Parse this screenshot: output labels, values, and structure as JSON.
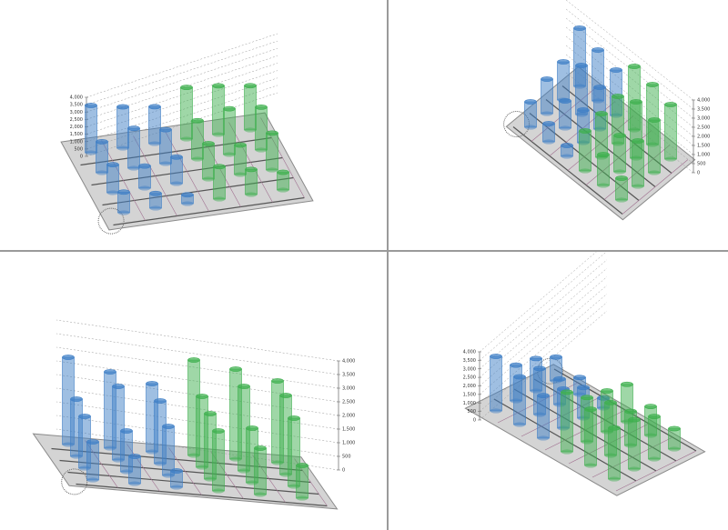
{
  "chart_data": [
    {
      "type": "cylinder3d",
      "series": [
        {
          "color": "#3f7fc6",
          "values": [
            3200,
            2800,
            2500,
            2100,
            2700,
            2300,
            1900,
            1500,
            1800,
            1400,
            1000,
            600
          ]
        },
        {
          "color": "#3fb04f",
          "values": [
            3500,
            3300,
            3000,
            2600,
            3100,
            2900,
            2400,
            2000,
            2500,
            2200,
            1700,
            1200
          ]
        }
      ],
      "ylim": [
        0,
        4000
      ],
      "yticks": [
        0,
        500,
        {
          "value": 1000,
          "label": "1,000"
        },
        {
          "value": 1500,
          "label": "1,500"
        },
        {
          "value": 2000,
          "label": "2,000"
        },
        {
          "value": 2500,
          "label": "2,500"
        },
        {
          "value": 3000,
          "label": "3,000"
        },
        {
          "value": 3500,
          "label": "3,500"
        },
        {
          "value": 4000,
          "label": "4,000"
        }
      ],
      "grid": true
    },
    {
      "type": "cylinder3d",
      "series": [
        {
          "color": "#3f7fc6",
          "values": [
            3200,
            2800,
            2500,
            2100,
            2700,
            2300,
            1900,
            1500,
            1800,
            1400,
            1000,
            600
          ]
        },
        {
          "color": "#3fb04f",
          "values": [
            3500,
            3300,
            3000,
            2600,
            3100,
            2900,
            2400,
            2000,
            2500,
            2200,
            1700,
            1200
          ]
        }
      ],
      "ylim": [
        0,
        4000
      ],
      "yticks": [
        0,
        500,
        {
          "value": 1000,
          "label": "1,000"
        },
        {
          "value": 1500,
          "label": "1,500"
        },
        {
          "value": 2000,
          "label": "2,000"
        },
        {
          "value": 2500,
          "label": "2,500"
        },
        {
          "value": 3000,
          "label": "3,000"
        },
        {
          "value": 3500,
          "label": "3,500"
        },
        {
          "value": 4000,
          "label": "4,000"
        }
      ],
      "grid": true
    },
    {
      "type": "cylinder3d",
      "series": [
        {
          "color": "#3f7fc6",
          "values": [
            3200,
            2800,
            2500,
            2100,
            2700,
            2300,
            1900,
            1500,
            1800,
            1400,
            1000,
            600
          ]
        },
        {
          "color": "#3fb04f",
          "values": [
            3500,
            3300,
            3000,
            2600,
            3100,
            2900,
            2400,
            2000,
            2500,
            2200,
            1700,
            1200
          ]
        }
      ],
      "ylim": [
        0,
        4000
      ],
      "yticks": [
        0,
        500,
        {
          "value": 1000,
          "label": "1,000"
        },
        {
          "value": 1500,
          "label": "1,500"
        },
        {
          "value": 2000,
          "label": "2,000"
        },
        {
          "value": 2500,
          "label": "2,500"
        },
        {
          "value": 3000,
          "label": "3,000"
        },
        {
          "value": 3500,
          "label": "3,500"
        },
        {
          "value": 4000,
          "label": "4,000"
        }
      ],
      "grid": true
    },
    {
      "type": "cylinder3d",
      "series": [
        {
          "color": "#3f7fc6",
          "values": [
            3200,
            2800,
            2500,
            2100,
            2700,
            2300,
            1900,
            1500,
            1800,
            1400,
            1000,
            600
          ]
        },
        {
          "color": "#3fb04f",
          "values": [
            3500,
            3300,
            3000,
            2600,
            3100,
            2900,
            2400,
            2000,
            2500,
            2200,
            1700,
            1200
          ]
        }
      ],
      "ylim": [
        0,
        4000
      ],
      "yticks": [
        0,
        500,
        {
          "value": 1000,
          "label": "1,000"
        },
        {
          "value": 1500,
          "label": "1,500"
        },
        {
          "value": 2000,
          "label": "2,000"
        },
        {
          "value": 2500,
          "label": "2,500"
        },
        {
          "value": 3000,
          "label": "3,000"
        },
        {
          "value": 3500,
          "label": "3,500"
        },
        {
          "value": 4000,
          "label": "4,000"
        }
      ],
      "grid": true
    }
  ]
}
